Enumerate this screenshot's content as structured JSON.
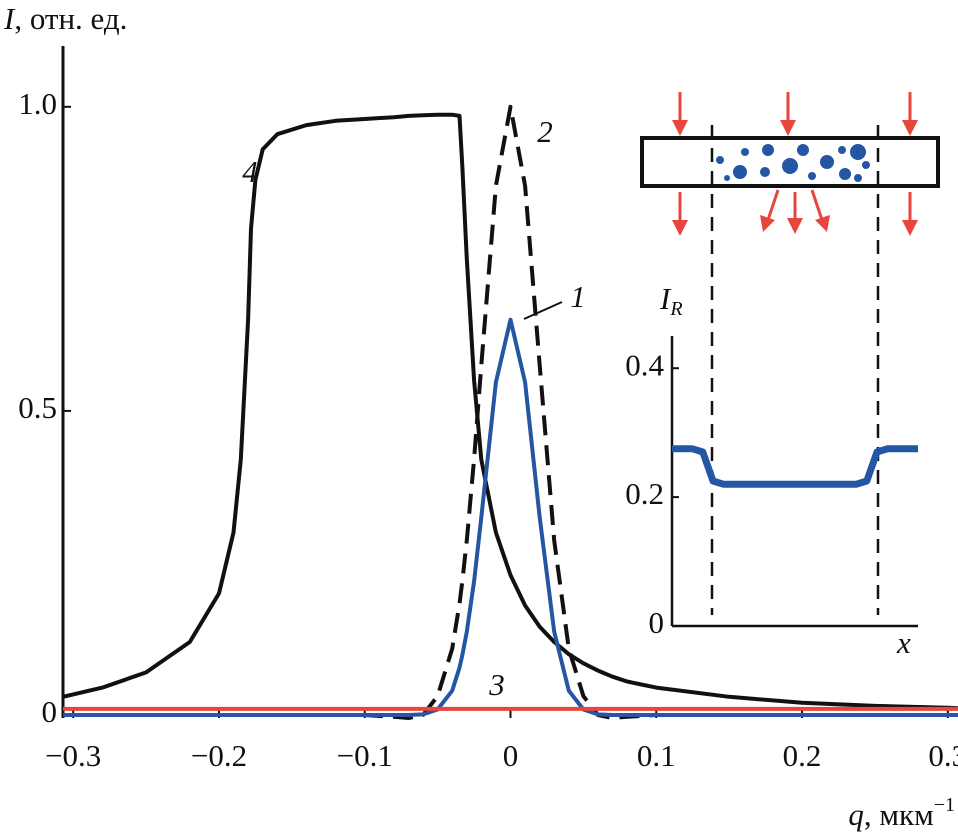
{
  "chart_data": {
    "type": "line",
    "y_label": {
      "symbol": "I",
      "unit": ", отн. ед."
    },
    "x_label": {
      "symbol": "q",
      "unit": ", мкм",
      "exponent": "−1"
    },
    "x": [
      -0.307,
      -0.28,
      -0.25,
      -0.22,
      -0.2,
      -0.19,
      -0.185,
      -0.18,
      -0.178,
      -0.175,
      -0.17,
      -0.16,
      -0.14,
      -0.12,
      -0.1,
      -0.08,
      -0.07,
      -0.06,
      -0.05,
      -0.04,
      -0.035,
      -0.033,
      -0.03,
      -0.025,
      -0.02,
      -0.01,
      0,
      0.01,
      0.02,
      0.03,
      0.04,
      0.05,
      0.06,
      0.07,
      0.08,
      0.1,
      0.15,
      0.2,
      0.25,
      0.3,
      0.307
    ],
    "series": [
      {
        "name": "1",
        "color": "#2456a4",
        "dash": false,
        "values": [
          0,
          0,
          0,
          0,
          0,
          0,
          0,
          0,
          0,
          0,
          0,
          0,
          0,
          0,
          0,
          0,
          0,
          0.001,
          0.009,
          0.04,
          0.078,
          0.099,
          0.137,
          0.22,
          0.325,
          0.547,
          0.65,
          0.547,
          0.325,
          0.137,
          0.04,
          0.009,
          0.001,
          0,
          0,
          0,
          0,
          0,
          0,
          0,
          0
        ]
      },
      {
        "name": "2",
        "color": "#111111",
        "dash": true,
        "values": [
          0,
          0,
          0,
          0,
          0,
          0,
          0,
          0,
          0,
          0,
          0,
          0,
          0,
          0,
          0,
          -0.003,
          -0.005,
          0,
          0.031,
          0.109,
          0.183,
          0.221,
          0.287,
          0.421,
          0.575,
          0.87,
          1,
          0.87,
          0.575,
          0.287,
          0.109,
          0.031,
          0,
          -0.005,
          -0.003,
          0,
          0,
          0,
          0,
          0,
          0
        ]
      },
      {
        "name": "3",
        "color": "#e8453c",
        "dash": false,
        "values": [
          0.01,
          0.01,
          0.01,
          0.01,
          0.01,
          0.01,
          0.01,
          0.01,
          0.01,
          0.01,
          0.01,
          0.01,
          0.01,
          0.01,
          0.01,
          0.01,
          0.01,
          0.01,
          0.01,
          0.01,
          0.01,
          0.01,
          0.01,
          0.01,
          0.01,
          0.01,
          0.01,
          0.01,
          0.01,
          0.01,
          0.01,
          0.01,
          0.01,
          0.01,
          0.01,
          0.01,
          0.01,
          0.01,
          0.01,
          0.01,
          0.01
        ]
      },
      {
        "name": "4",
        "color": "#111111",
        "dash": false,
        "values": [
          0.03,
          0.045,
          0.07,
          0.12,
          0.2,
          0.3,
          0.42,
          0.65,
          0.8,
          0.88,
          0.93,
          0.955,
          0.97,
          0.977,
          0.98,
          0.983,
          0.985,
          0.986,
          0.987,
          0.987,
          0.985,
          0.9,
          0.75,
          0.55,
          0.42,
          0.3,
          0.23,
          0.18,
          0.145,
          0.12,
          0.1,
          0.085,
          0.073,
          0.063,
          0.055,
          0.045,
          0.03,
          0.02,
          0.015,
          0.012,
          0.011
        ]
      }
    ],
    "xlim": [
      -0.307,
      0.307
    ],
    "xticks": [
      {
        "value": -0.3,
        "label": "−0.3"
      },
      {
        "value": -0.2,
        "label": "−0.2"
      },
      {
        "value": -0.1,
        "label": "−0.1"
      },
      0,
      0.1,
      0.2,
      0.3
    ],
    "ylim": [
      0,
      1.1
    ],
    "yticks": [
      0,
      0.5,
      {
        "value": 1,
        "label": "1.0"
      }
    ],
    "inset": {
      "y_label": {
        "symbol": "I",
        "subscript": "R"
      },
      "x_label": "x",
      "color": "#2456a4",
      "values": [
        0.275,
        0.275,
        0.275,
        0.27,
        0.225,
        0.22,
        0.22,
        0.22,
        0.22,
        0.22,
        0.22,
        0.22,
        0.22,
        0.22,
        0.22,
        0.22,
        0.22,
        0.22,
        0.22,
        0.225,
        0.27,
        0.275,
        0.275,
        0.275,
        0.275
      ],
      "ylim": [
        0,
        0.45
      ],
      "yticks": [
        0,
        0.2,
        0.4
      ]
    }
  }
}
